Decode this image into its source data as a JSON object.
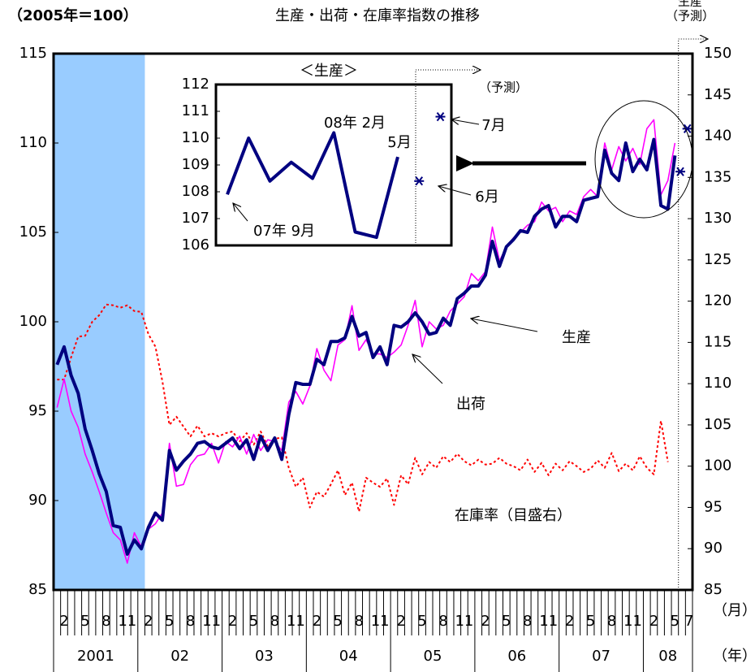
{
  "chart_data": {
    "type": "line",
    "title": "生産・出荷・在庫率指数の推移",
    "unit_label": "（2005年＝100）",
    "categories": [
      null,
      "2",
      null,
      null,
      "5",
      null,
      null,
      "8",
      null,
      null,
      "11",
      null,
      null,
      "2",
      null,
      null,
      "5",
      null,
      null,
      "8",
      null,
      null,
      "11",
      null,
      null,
      "2",
      null,
      null,
      "5",
      null,
      null,
      "8",
      null,
      null,
      "11",
      null,
      null,
      "2",
      null,
      null,
      "5",
      null,
      null,
      "8",
      null,
      null,
      "11",
      null,
      null,
      "2",
      null,
      null,
      "5",
      null,
      null,
      "8",
      null,
      null,
      "11",
      null,
      null,
      "2",
      null,
      null,
      "5",
      null,
      null,
      "8",
      null,
      null,
      "11",
      null,
      null,
      "2",
      null,
      null,
      "5",
      null,
      null,
      "8",
      null,
      null,
      "11",
      null,
      null,
      "2",
      null,
      null,
      "5",
      null,
      "7"
    ],
    "year_labels": [
      "2001",
      "02",
      "03",
      "04",
      "05",
      "06",
      "07",
      "08"
    ],
    "x_unit_labels": [
      "（月）",
      "（年）"
    ],
    "ylim": [
      85,
      115
    ],
    "yticks": [
      85,
      90,
      95,
      100,
      105,
      110,
      115
    ],
    "y2lim": [
      85,
      150
    ],
    "y2ticks": [
      85,
      90,
      95,
      100,
      105,
      110,
      115,
      120,
      125,
      130,
      135,
      140,
      145,
      150
    ],
    "shade": {
      "from": 0,
      "to": 12,
      "color": "#99ccff"
    },
    "series": [
      {
        "name": "生産",
        "color": "#000080",
        "values": [
          97.6,
          98.6,
          97.0,
          96.0,
          94.0,
          92.8,
          91.5,
          90.5,
          88.6,
          88.5,
          87.0,
          87.8,
          87.3,
          88.5,
          89.3,
          88.9,
          92.8,
          91.7,
          92.2,
          92.6,
          93.2,
          93.3,
          93.0,
          92.9,
          93.2,
          93.5,
          92.9,
          93.4,
          92.3,
          93.6,
          92.8,
          93.5,
          92.3,
          94.8,
          96.6,
          96.5,
          96.5,
          97.9,
          97.6,
          98.9,
          98.9,
          99.1,
          100.3,
          99.2,
          99.4,
          98.0,
          98.6,
          97.6,
          99.8,
          99.7,
          100.0,
          100.5,
          100.0,
          99.3,
          99.4,
          100.2,
          99.8,
          101.3,
          101.6,
          102.0,
          102.0,
          102.6,
          104.5,
          103.1,
          104.2,
          104.6,
          105.1,
          105.0,
          105.9,
          106.3,
          106.5,
          105.3,
          105.9,
          105.9,
          105.6,
          106.8,
          106.9,
          107.0,
          109.6,
          108.3,
          107.9,
          110.0,
          108.4,
          109.1,
          108.5,
          110.2,
          106.5,
          106.3,
          109.3,
          null,
          null
        ]
      },
      {
        "name": "出荷",
        "color": "#ff00ff",
        "values": [
          95.2,
          96.8,
          95.0,
          94.1,
          92.6,
          91.6,
          90.5,
          89.3,
          88.2,
          87.8,
          86.5,
          88.2,
          87.4,
          88.4,
          88.7,
          89.3,
          93.2,
          90.8,
          90.9,
          92.0,
          92.5,
          92.6,
          93.2,
          92.1,
          93.3,
          93.0,
          93.6,
          92.6,
          93.7,
          92.8,
          93.4,
          93.3,
          92.8,
          95.5,
          96.1,
          95.4,
          96.4,
          98.5,
          97.3,
          96.7,
          98.7,
          99.0,
          100.9,
          98.4,
          99.0,
          98.2,
          98.2,
          98.0,
          98.3,
          98.7,
          99.8,
          101.2,
          98.6,
          100.0,
          99.6,
          99.8,
          100.6,
          101.0,
          101.4,
          102.7,
          102.3,
          102.8,
          105.3,
          103.4,
          104.2,
          104.7,
          105.0,
          105.4,
          105.6,
          106.7,
          106.2,
          106.4,
          105.6,
          106.2,
          106.0,
          107.0,
          107.4,
          107.0,
          110.0,
          108.5,
          109.8,
          109.0,
          109.7,
          108.8,
          110.8,
          111.3,
          107.1,
          107.9,
          110.0,
          null,
          null
        ]
      },
      {
        "name": "在庫率（目盛右）",
        "color": "#ff0000",
        "axis": "y2",
        "dashed": true,
        "values": [
          110.5,
          110.5,
          113.2,
          115.7,
          115.8,
          117.5,
          118.3,
          119.6,
          119.5,
          119.2,
          119.5,
          118.8,
          118.7,
          116.0,
          114.5,
          110.3,
          105.0,
          106.0,
          104.8,
          103.6,
          104.9,
          103.6,
          104.0,
          103.6,
          104.0,
          104.2,
          103.0,
          104.0,
          102.6,
          104.2,
          102.4,
          103.3,
          103.5,
          99.8,
          97.5,
          98.6,
          95.0,
          96.9,
          96.3,
          97.8,
          99.5,
          96.5,
          98.0,
          94.5,
          98.6,
          98.0,
          97.5,
          98.5,
          95.3,
          98.9,
          97.8,
          101.0,
          99.0,
          100.5,
          99.8,
          101.2,
          100.5,
          101.5,
          100.6,
          100.1,
          100.8,
          100.2,
          100.3,
          101.0,
          100.3,
          100.0,
          99.5,
          100.8,
          99.3,
          100.4,
          98.9,
          100.3,
          99.5,
          100.6,
          100.0,
          99.3,
          99.7,
          100.7,
          99.8,
          101.6,
          99.4,
          100.3,
          99.5,
          101.2,
          99.8,
          99.0,
          105.5,
          100.5,
          null,
          null,
          null
        ]
      }
    ],
    "forecast": {
      "values": [
        108.4,
        110.8
      ],
      "color": "#000080",
      "labels": [
        "生産",
        "（予測）"
      ]
    },
    "inset": {
      "title": "＜生産＞",
      "values": [
        107.9,
        110.0,
        108.4,
        109.1,
        108.5,
        110.2,
        106.5,
        106.3,
        109.3
      ],
      "forecast": [
        108.4,
        110.8
      ],
      "forecast_label": "（予測）",
      "color": "#000080",
      "ylim": [
        106,
        112
      ],
      "yticks": [
        106,
        107,
        108,
        109,
        110,
        111,
        112
      ],
      "annotations": [
        "07年 9月",
        "08年 2月",
        "5月",
        "6月",
        "7月"
      ]
    }
  }
}
